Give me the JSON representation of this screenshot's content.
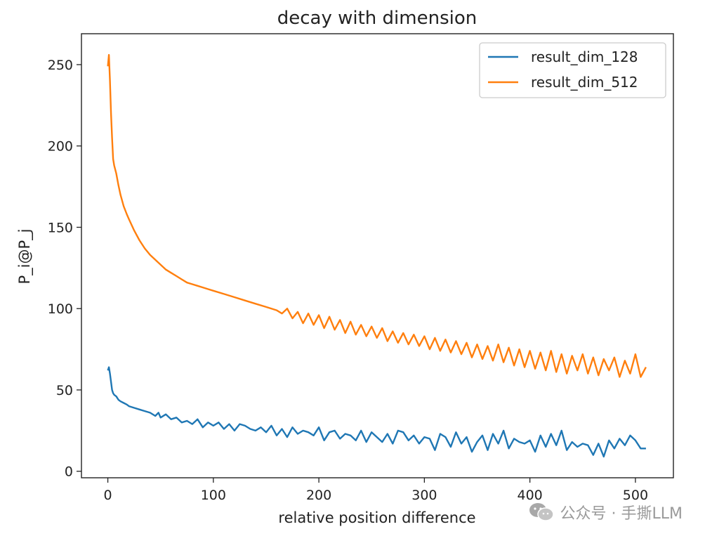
{
  "chart_data": {
    "type": "line",
    "title": "decay with dimension",
    "xlabel": "relative position difference",
    "ylabel": "P_i@P_j",
    "xlim": [
      -25,
      536
    ],
    "ylim": [
      -4,
      269
    ],
    "xticks": [
      0,
      100,
      200,
      300,
      400,
      500
    ],
    "yticks": [
      0,
      50,
      100,
      150,
      200,
      250
    ],
    "legend_position": "top-right",
    "series": [
      {
        "name": "result_dim_128",
        "color": "#1f77b4",
        "x": [
          0,
          1,
          2,
          3,
          4,
          5,
          6,
          8,
          10,
          12,
          15,
          18,
          20,
          25,
          30,
          35,
          40,
          45,
          48,
          50,
          55,
          60,
          65,
          70,
          75,
          80,
          85,
          90,
          95,
          100,
          105,
          110,
          115,
          120,
          125,
          130,
          135,
          140,
          145,
          150,
          155,
          160,
          165,
          170,
          175,
          180,
          185,
          190,
          195,
          200,
          205,
          210,
          215,
          220,
          225,
          230,
          235,
          240,
          245,
          250,
          255,
          260,
          265,
          270,
          275,
          280,
          285,
          290,
          295,
          300,
          305,
          310,
          315,
          320,
          325,
          330,
          335,
          340,
          345,
          350,
          355,
          360,
          365,
          370,
          375,
          380,
          385,
          390,
          395,
          400,
          405,
          410,
          415,
          420,
          425,
          430,
          435,
          440,
          445,
          450,
          455,
          460,
          465,
          470,
          475,
          480,
          485,
          490,
          495,
          500,
          505,
          510
        ],
        "values": [
          62,
          64,
          60,
          55,
          50,
          48,
          47,
          46,
          44,
          43,
          42,
          41,
          40,
          39,
          38,
          37,
          36,
          34,
          36,
          33,
          35,
          32,
          33,
          30,
          31,
          29,
          32,
          27,
          30,
          28,
          30,
          26,
          29,
          25,
          29,
          28,
          26,
          25,
          27,
          24,
          28,
          22,
          26,
          21,
          27,
          23,
          25,
          24,
          22,
          27,
          19,
          24,
          25,
          20,
          23,
          22,
          19,
          25,
          18,
          24,
          21,
          18,
          23,
          17,
          25,
          24,
          19,
          22,
          17,
          21,
          20,
          13,
          23,
          21,
          15,
          24,
          17,
          21,
          12,
          18,
          22,
          13,
          23,
          17,
          25,
          14,
          20,
          18,
          17,
          19,
          12,
          22,
          15,
          23,
          16,
          25,
          13,
          18,
          15,
          17,
          16,
          10,
          17,
          9,
          19,
          14,
          20,
          16,
          22,
          19,
          14,
          14
        ]
      },
      {
        "name": "result_dim_512",
        "color": "#ff7f0e",
        "x": [
          0,
          1,
          2,
          3,
          4,
          5,
          6,
          8,
          10,
          12,
          15,
          18,
          20,
          25,
          30,
          35,
          40,
          45,
          50,
          55,
          60,
          65,
          70,
          75,
          80,
          85,
          90,
          95,
          100,
          110,
          120,
          130,
          140,
          150,
          160,
          165,
          170,
          175,
          180,
          185,
          190,
          195,
          200,
          205,
          210,
          215,
          220,
          225,
          230,
          235,
          240,
          245,
          250,
          255,
          260,
          265,
          270,
          275,
          280,
          285,
          290,
          295,
          300,
          305,
          310,
          315,
          320,
          325,
          330,
          335,
          340,
          345,
          350,
          355,
          360,
          365,
          370,
          375,
          380,
          385,
          390,
          395,
          400,
          405,
          410,
          415,
          420,
          425,
          430,
          435,
          440,
          445,
          450,
          455,
          460,
          465,
          470,
          475,
          480,
          485,
          490,
          495,
          500,
          505,
          510
        ],
        "values": [
          249,
          256,
          240,
          220,
          205,
          192,
          188,
          183,
          176,
          170,
          163,
          158,
          155,
          148,
          142,
          137,
          133,
          130,
          127,
          124,
          122,
          120,
          118,
          116,
          115,
          114,
          113,
          112,
          111,
          109,
          107,
          105,
          103,
          101,
          99,
          97,
          100,
          94,
          98,
          91,
          97,
          90,
          96,
          88,
          95,
          87,
          93,
          85,
          92,
          84,
          90,
          83,
          89,
          82,
          88,
          80,
          86,
          79,
          85,
          78,
          84,
          77,
          83,
          75,
          82,
          74,
          81,
          73,
          80,
          72,
          79,
          70,
          78,
          69,
          77,
          68,
          78,
          67,
          76,
          65,
          75,
          64,
          74,
          63,
          73,
          62,
          74,
          61,
          72,
          60,
          71,
          62,
          72,
          60,
          70,
          59,
          69,
          62,
          70,
          58,
          68,
          60,
          72,
          58,
          64
        ]
      }
    ]
  },
  "watermark": {
    "text": "公众号 · 手撕LLM",
    "icon": "wechat-icon"
  }
}
